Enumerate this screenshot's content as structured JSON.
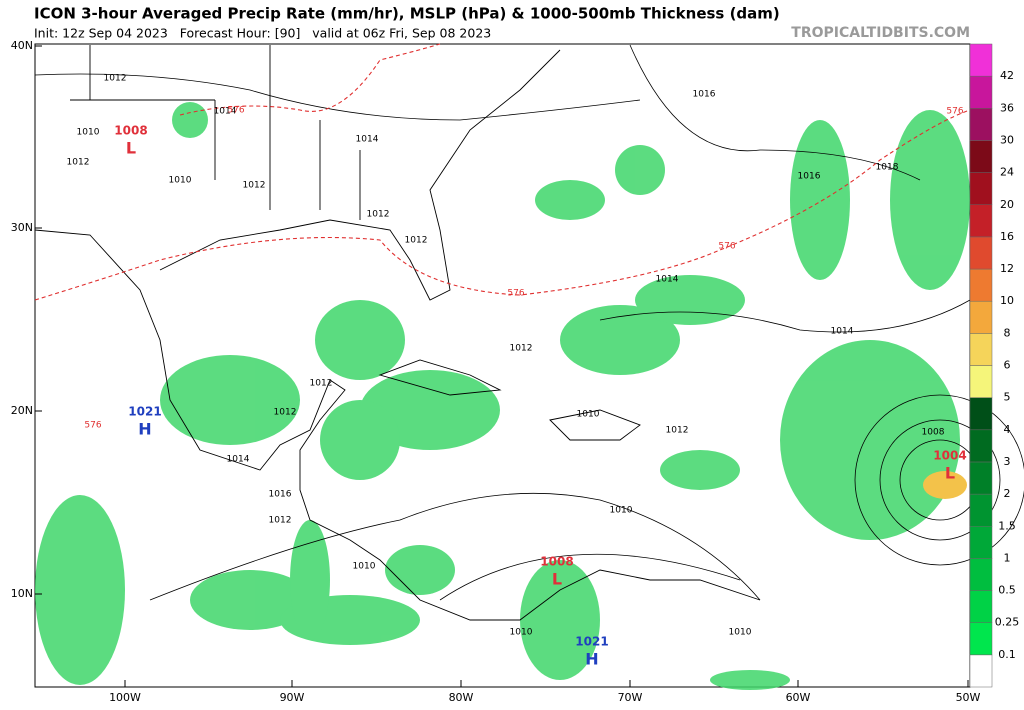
{
  "header": {
    "title": "ICON 3-hour Averaged Precip Rate (mm/hr), MSLP (hPa) & 1000-500mb Thickness (dam)",
    "subtitle": "Init: 12z Sep 04 2023   Forecast Hour: [90]   valid at 06z Fri, Sep 08 2023",
    "credit": "TROPICALTIDBITS.COM"
  },
  "map": {
    "lat_labels": [
      "40N",
      "30N",
      "20N",
      "10N"
    ],
    "lon_labels": [
      "100W",
      "90W",
      "80W",
      "70W",
      "60W",
      "50W"
    ],
    "isobar_labels": [
      "1012",
      "1010",
      "1012",
      "1010",
      "1014",
      "1014",
      "1012",
      "1016",
      "1016",
      "1018",
      "1012",
      "1012",
      "1014",
      "1014",
      "1012",
      "1010",
      "1008",
      "1012",
      "1012",
      "1012",
      "1010",
      "1010",
      "1010",
      "1010",
      "1016",
      "1014",
      "1012"
    ],
    "thickness_labels": [
      "576",
      "576",
      "576",
      "576",
      "576"
    ],
    "centers": [
      {
        "pressure": "1008",
        "letter": "L",
        "color": "#e0303a"
      },
      {
        "pressure": "1004",
        "letter": "L",
        "color": "#e0303a"
      },
      {
        "pressure": "1008",
        "letter": "L",
        "color": "#e0303a"
      },
      {
        "pressure": "1021",
        "letter": "H",
        "color": "#1f3fbf"
      },
      {
        "pressure": "1021",
        "letter": "H",
        "color": "#1f3fbf"
      }
    ]
  },
  "colorbar": {
    "levels": [
      0.1,
      0.25,
      0.5,
      1,
      1.5,
      2,
      3,
      4,
      5,
      6,
      8,
      10,
      12,
      16,
      20,
      24,
      30,
      36,
      42
    ],
    "colors": [
      "#ffffff",
      "#00e64d",
      "#00d246",
      "#00be3f",
      "#00a838",
      "#009430",
      "#008028",
      "#006b20",
      "#004f18",
      "#f5f57a",
      "#f5d45a",
      "#f3a83c",
      "#ee7a30",
      "#e04a2e",
      "#c42028",
      "#a0101e",
      "#7c0a18",
      "#9c1060",
      "#c8169c",
      "#f030d8"
    ]
  }
}
